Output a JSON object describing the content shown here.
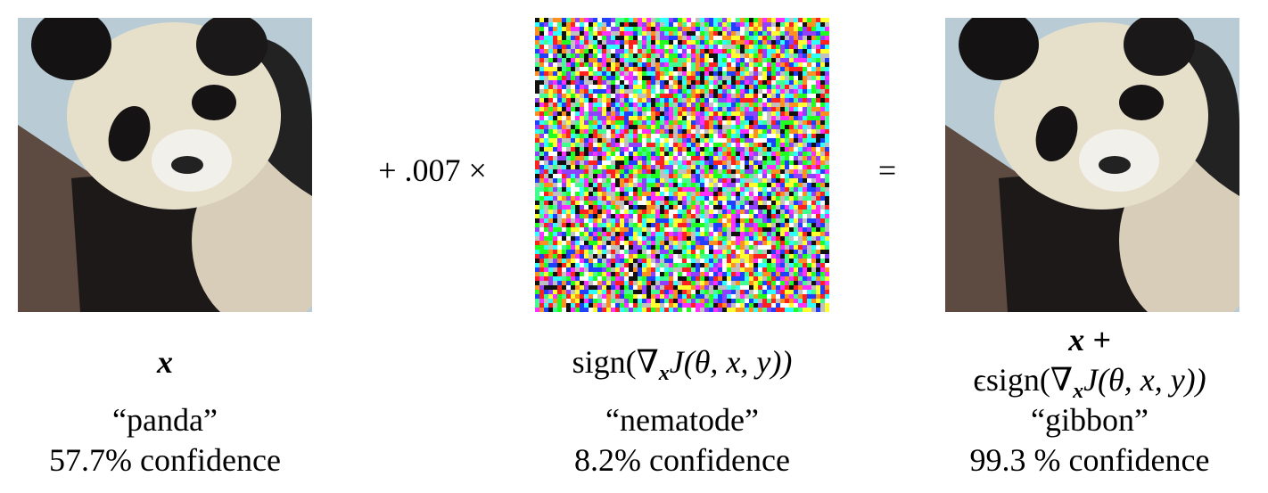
{
  "operators": {
    "plus": "+ .007 ×",
    "equals": "="
  },
  "panels": [
    {
      "formula": "x",
      "label": "“panda”",
      "confidence": "57.7% confidence"
    },
    {
      "formula": {
        "prefix": "sign(∇",
        "subscript": "x",
        "rest": "J(θ, x, y))"
      },
      "label": "“nematode”",
      "confidence": "8.2% confidence"
    },
    {
      "formula": {
        "first_line": "x +",
        "prefix": "ϵsign(∇",
        "subscript": "x",
        "rest": "J(θ, x, y))"
      },
      "label": "“gibbon”",
      "confidence": "99.3 % confidence"
    }
  ]
}
